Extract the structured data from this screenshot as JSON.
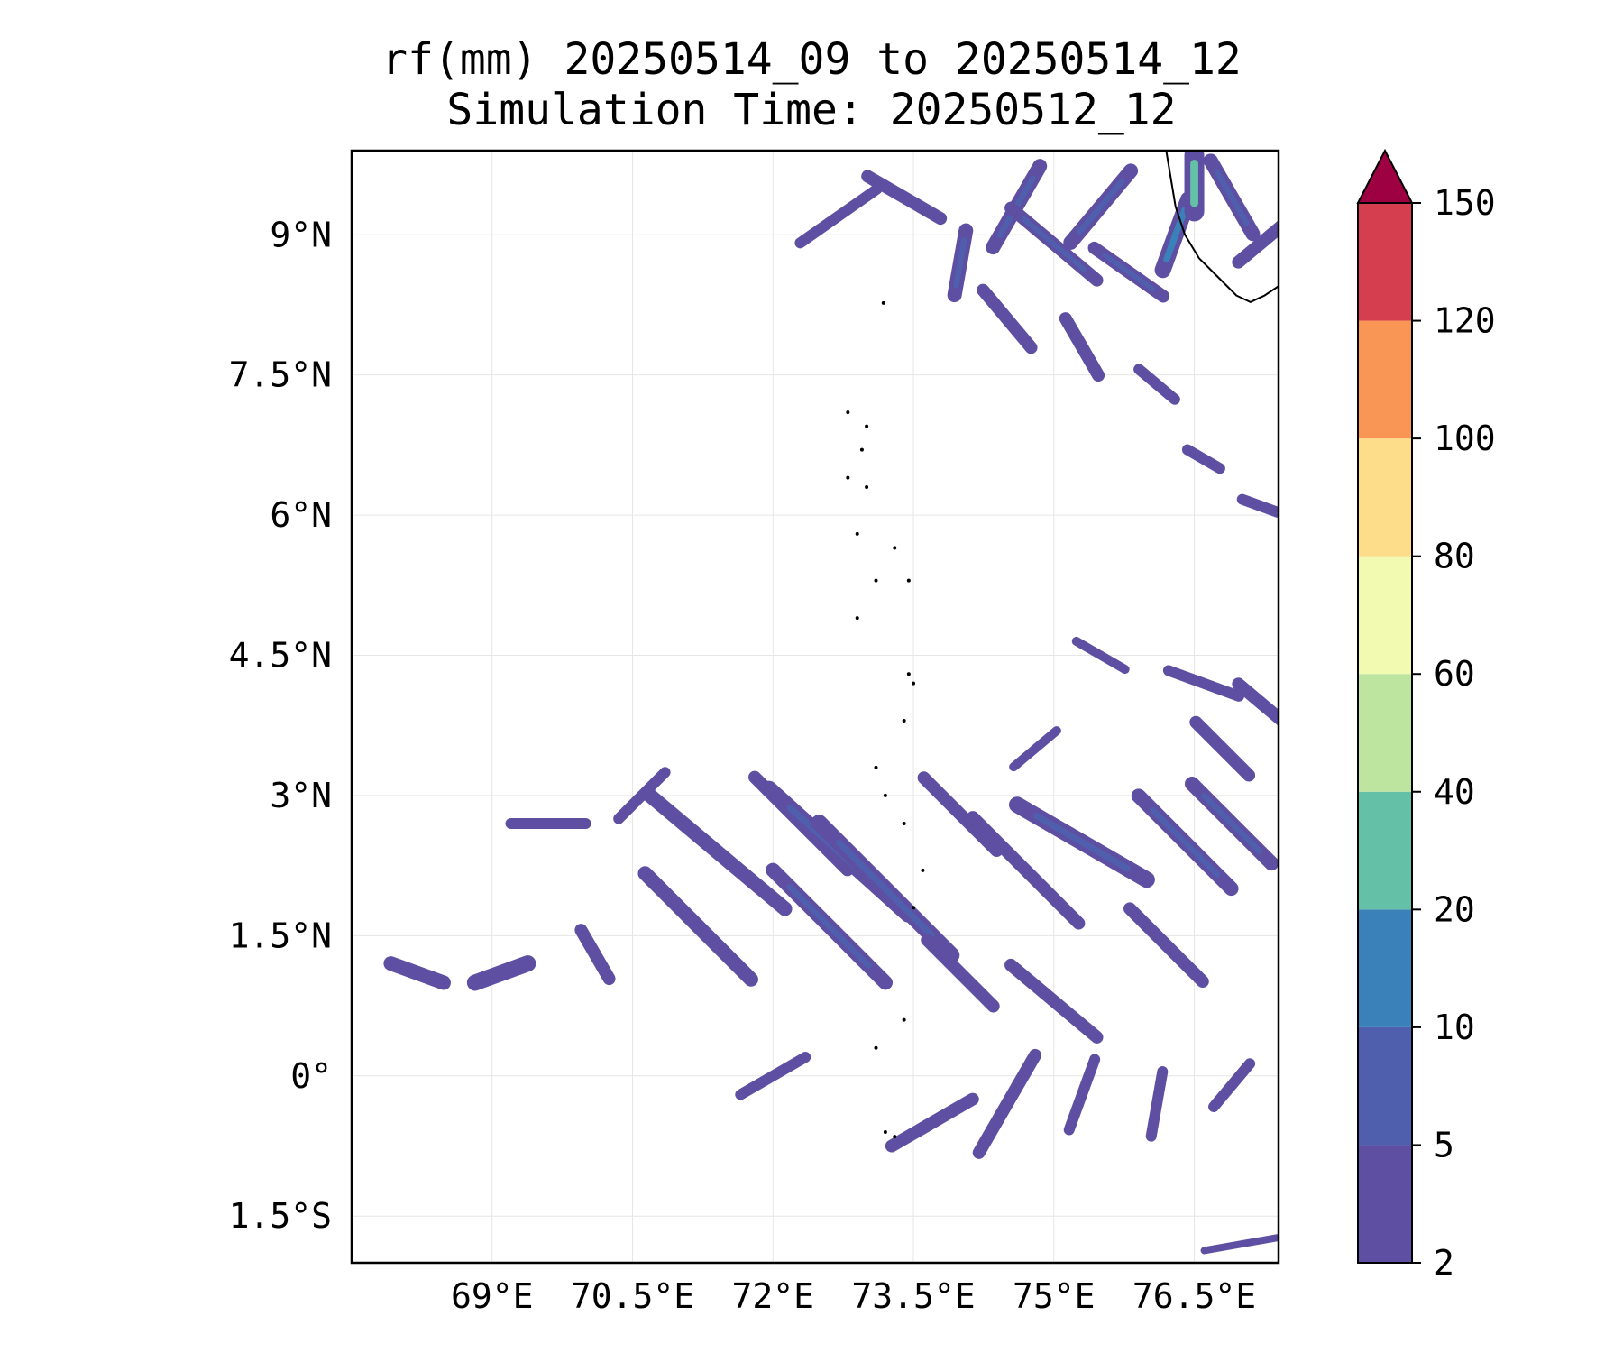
{
  "title": {
    "line1": "rf(mm) 20250514_09 to 20250514_12",
    "line2": "Simulation Time: 20250512_12"
  },
  "map": {
    "lon_range": [
      67.5,
      77.4
    ],
    "lat_range": [
      -2.0,
      9.9
    ],
    "grid": true,
    "x_ticks": [
      {
        "value": 69.0,
        "label": "69°E"
      },
      {
        "value": 70.5,
        "label": "70.5°E"
      },
      {
        "value": 72.0,
        "label": "72°E"
      },
      {
        "value": 73.5,
        "label": "73.5°E"
      },
      {
        "value": 75.0,
        "label": "75°E"
      },
      {
        "value": 76.5,
        "label": "76.5°E"
      }
    ],
    "y_ticks": [
      {
        "value": 9.0,
        "label": "9°N"
      },
      {
        "value": 7.5,
        "label": "7.5°N"
      },
      {
        "value": 6.0,
        "label": "6°N"
      },
      {
        "value": 4.5,
        "label": "4.5°N"
      },
      {
        "value": 3.0,
        "label": "3°N"
      },
      {
        "value": 1.5,
        "label": "1.5°N"
      },
      {
        "value": 0.0,
        "label": "0°"
      },
      {
        "value": -1.5,
        "label": "1.5°S"
      }
    ],
    "coastline": [
      [
        76.2,
        9.9
      ],
      [
        76.25,
        9.6
      ],
      [
        76.3,
        9.3
      ],
      [
        76.4,
        9.0
      ],
      [
        76.55,
        8.75
      ],
      [
        76.75,
        8.55
      ],
      [
        76.95,
        8.35
      ],
      [
        77.1,
        8.28
      ],
      [
        77.25,
        8.35
      ],
      [
        77.4,
        8.45
      ]
    ],
    "islands": [
      [
        73.18,
        8.27
      ],
      [
        72.8,
        7.1
      ],
      [
        73.0,
        6.95
      ],
      [
        72.95,
        6.7
      ],
      [
        72.8,
        6.4
      ],
      [
        73.0,
        6.3
      ],
      [
        72.9,
        5.8
      ],
      [
        73.3,
        5.65
      ],
      [
        73.1,
        5.3
      ],
      [
        73.45,
        5.3
      ],
      [
        72.9,
        4.9
      ],
      [
        73.45,
        4.3
      ],
      [
        73.5,
        4.2
      ],
      [
        73.4,
        3.8
      ],
      [
        73.1,
        3.3
      ],
      [
        73.2,
        3.0
      ],
      [
        73.4,
        2.7
      ],
      [
        73.6,
        2.2
      ],
      [
        73.5,
        1.8
      ],
      [
        73.4,
        0.6
      ],
      [
        73.1,
        0.3
      ],
      [
        73.2,
        -0.6
      ],
      [
        73.3,
        -0.65
      ]
    ],
    "rain_patches": [
      {
        "lon": 72.7,
        "lat": 9.2,
        "len": 1.0,
        "angle": 35,
        "w": 12,
        "level": 0
      },
      {
        "lon": 73.4,
        "lat": 9.4,
        "len": 0.9,
        "angle": -30,
        "w": 14,
        "level": 0
      },
      {
        "lon": 74.6,
        "lat": 9.3,
        "len": 1.0,
        "angle": 60,
        "w": 16,
        "level": 1
      },
      {
        "lon": 75.0,
        "lat": 8.9,
        "len": 1.2,
        "angle": -40,
        "w": 14,
        "level": 1
      },
      {
        "lon": 75.5,
        "lat": 9.3,
        "len": 1.0,
        "angle": 50,
        "w": 16,
        "level": 1
      },
      {
        "lon": 75.8,
        "lat": 8.6,
        "len": 0.9,
        "angle": -35,
        "w": 14,
        "level": 1
      },
      {
        "lon": 76.3,
        "lat": 9.0,
        "len": 0.8,
        "angle": 70,
        "w": 18,
        "level": 2
      },
      {
        "lon": 76.5,
        "lat": 9.55,
        "len": 0.6,
        "angle": 90,
        "w": 22,
        "level": 3
      },
      {
        "lon": 76.9,
        "lat": 9.4,
        "len": 0.9,
        "angle": -60,
        "w": 16,
        "level": 1
      },
      {
        "lon": 77.2,
        "lat": 8.9,
        "len": 0.6,
        "angle": 40,
        "w": 14,
        "level": 0
      },
      {
        "lon": 74.0,
        "lat": 8.7,
        "len": 0.7,
        "angle": 80,
        "w": 16,
        "level": 1
      },
      {
        "lon": 74.5,
        "lat": 8.1,
        "len": 0.8,
        "angle": -50,
        "w": 14,
        "level": 0
      },
      {
        "lon": 75.3,
        "lat": 7.8,
        "len": 0.7,
        "angle": -60,
        "w": 14,
        "level": 0
      },
      {
        "lon": 76.1,
        "lat": 7.4,
        "len": 0.5,
        "angle": -40,
        "w": 12,
        "level": 0
      },
      {
        "lon": 76.6,
        "lat": 6.6,
        "len": 0.4,
        "angle": -30,
        "w": 12,
        "level": 0
      },
      {
        "lon": 77.2,
        "lat": 6.1,
        "len": 0.4,
        "angle": -20,
        "w": 12,
        "level": 0
      },
      {
        "lon": 70.6,
        "lat": 3.0,
        "len": 0.7,
        "angle": 45,
        "w": 12,
        "level": 0
      },
      {
        "lon": 71.4,
        "lat": 2.4,
        "len": 1.9,
        "angle": -40,
        "w": 16,
        "level": 0
      },
      {
        "lon": 71.2,
        "lat": 1.6,
        "len": 1.6,
        "angle": -45,
        "w": 16,
        "level": 0
      },
      {
        "lon": 72.3,
        "lat": 2.7,
        "len": 1.4,
        "angle": -45,
        "w": 14,
        "level": 0
      },
      {
        "lon": 72.7,
        "lat": 2.4,
        "len": 2.0,
        "angle": -42,
        "w": 18,
        "level": 1
      },
      {
        "lon": 72.6,
        "lat": 1.6,
        "len": 1.7,
        "angle": -45,
        "w": 16,
        "level": 1
      },
      {
        "lon": 73.2,
        "lat": 2.0,
        "len": 2.0,
        "angle": -45,
        "w": 18,
        "level": 1
      },
      {
        "lon": 74.0,
        "lat": 2.8,
        "len": 1.1,
        "angle": -45,
        "w": 14,
        "level": 0
      },
      {
        "lon": 75.3,
        "lat": 2.5,
        "len": 1.6,
        "angle": -30,
        "w": 18,
        "level": 1
      },
      {
        "lon": 74.7,
        "lat": 2.2,
        "len": 1.6,
        "angle": -45,
        "w": 14,
        "level": 0
      },
      {
        "lon": 76.4,
        "lat": 2.5,
        "len": 1.4,
        "angle": -45,
        "w": 16,
        "level": 1
      },
      {
        "lon": 76.9,
        "lat": 2.7,
        "len": 1.2,
        "angle": -45,
        "w": 16,
        "level": 1
      },
      {
        "lon": 74.0,
        "lat": 1.1,
        "len": 1.0,
        "angle": -45,
        "w": 14,
        "level": 0
      },
      {
        "lon": 75.0,
        "lat": 0.8,
        "len": 1.2,
        "angle": -40,
        "w": 14,
        "level": 0
      },
      {
        "lon": 76.2,
        "lat": 1.4,
        "len": 1.1,
        "angle": -45,
        "w": 14,
        "level": 0
      },
      {
        "lon": 69.6,
        "lat": 2.7,
        "len": 0.8,
        "angle": 0,
        "w": 12,
        "level": 0
      },
      {
        "lon": 69.1,
        "lat": 1.1,
        "len": 0.6,
        "angle": 20,
        "w": 18,
        "level": 0
      },
      {
        "lon": 68.2,
        "lat": 1.1,
        "len": 0.6,
        "angle": -20,
        "w": 16,
        "level": 0
      },
      {
        "lon": 70.1,
        "lat": 1.3,
        "len": 0.6,
        "angle": -60,
        "w": 14,
        "level": 0
      },
      {
        "lon": 72.0,
        "lat": 0.0,
        "len": 0.8,
        "angle": 30,
        "w": 12,
        "level": 0
      },
      {
        "lon": 73.7,
        "lat": -0.5,
        "len": 1.0,
        "angle": 30,
        "w": 14,
        "level": 0
      },
      {
        "lon": 74.5,
        "lat": -0.3,
        "len": 1.2,
        "angle": 60,
        "w": 14,
        "level": 0
      },
      {
        "lon": 75.3,
        "lat": -0.2,
        "len": 0.8,
        "angle": 70,
        "w": 12,
        "level": 0
      },
      {
        "lon": 76.1,
        "lat": -0.3,
        "len": 0.7,
        "angle": 80,
        "w": 12,
        "level": 0
      },
      {
        "lon": 76.9,
        "lat": -0.1,
        "len": 0.6,
        "angle": 50,
        "w": 12,
        "level": 0
      },
      {
        "lon": 77.2,
        "lat": 4.0,
        "len": 0.6,
        "angle": -40,
        "w": 14,
        "level": 0
      },
      {
        "lon": 76.6,
        "lat": 4.2,
        "len": 0.8,
        "angle": -20,
        "w": 12,
        "level": 0
      },
      {
        "lon": 75.5,
        "lat": 4.5,
        "len": 0.6,
        "angle": -30,
        "w": 10,
        "level": 0
      },
      {
        "lon": 76.8,
        "lat": 3.5,
        "len": 0.8,
        "angle": -45,
        "w": 14,
        "level": 0
      },
      {
        "lon": 74.8,
        "lat": 3.5,
        "len": 0.6,
        "angle": 40,
        "w": 10,
        "level": 0
      },
      {
        "lon": 77.0,
        "lat": -1.8,
        "len": 0.8,
        "angle": 10,
        "w": 8,
        "level": 0
      }
    ]
  },
  "colorbar": {
    "levels": [
      "2",
      "5",
      "10",
      "20",
      "40",
      "60",
      "80",
      "100",
      "120",
      "150"
    ],
    "colors": [
      "#5e4fa2",
      "#4f5fad",
      "#3a80b9",
      "#64c0a6",
      "#bde5a0",
      "#f2f9b0",
      "#fddd8a",
      "#f99655",
      "#d53e4f"
    ],
    "extend_color": "#9e0142"
  }
}
